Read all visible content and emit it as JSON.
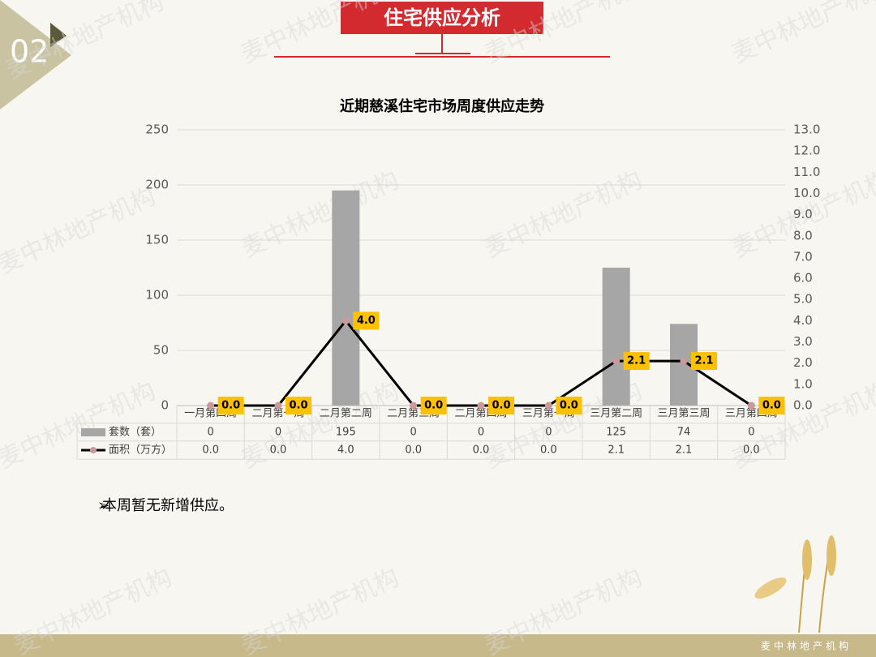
{
  "section_number": "02",
  "header_title": "住宅供应分析",
  "watermark": "麦中林地产机构",
  "footer": "麦中林地产机构",
  "bullet": "本周暂无新增供应。",
  "chart_data": {
    "type": "bar_line",
    "title": "近期慈溪住宅市场周度供应走势",
    "categories": [
      "一月第四周",
      "二月第一周",
      "二月第二周",
      "二月第三周",
      "二月第四周",
      "三月第一周",
      "三月第二周",
      "三月第三周",
      "三月第四周"
    ],
    "series": [
      {
        "name": "套数（套）",
        "type": "bar",
        "color": "#a6a6a6",
        "values": [
          0,
          0,
          195,
          0,
          0,
          0,
          125,
          74,
          0
        ]
      },
      {
        "name": "面积（万方）",
        "type": "line",
        "axis": "y2",
        "color": "#000000",
        "marker_color": "#c99a9a",
        "label_color": "#ffc000",
        "values": [
          0,
          0,
          4.0,
          0,
          0,
          0,
          2.1,
          2.1,
          0
        ],
        "value_labels": [
          "0.0",
          "0.0",
          "4.0",
          "0.0",
          "0.0",
          "0.0",
          "2.1",
          "2.1",
          "0.0"
        ]
      }
    ],
    "ylim": [
      0,
      250
    ],
    "yticks": [
      0,
      50,
      100,
      150,
      200,
      250
    ],
    "y2lim": [
      0,
      13
    ],
    "y2ticks": [
      {
        "value": 0,
        "label": "0.0"
      },
      {
        "value": 1,
        "label": "1.0"
      },
      {
        "value": 2,
        "label": "2.0"
      },
      {
        "value": 3,
        "label": "3.0"
      },
      {
        "value": 4,
        "label": "4.0"
      },
      {
        "value": 5,
        "label": "5.0"
      },
      {
        "value": 6,
        "label": "6.0"
      },
      {
        "value": 7,
        "label": "7.0"
      },
      {
        "value": 8,
        "label": "8.0"
      },
      {
        "value": 9,
        "label": "9.0"
      },
      {
        "value": 10,
        "label": "10.0"
      },
      {
        "value": 11,
        "label": "11.0"
      },
      {
        "value": 12,
        "label": "12.0"
      },
      {
        "value": 13,
        "label": "13.0"
      }
    ],
    "grid": true,
    "data_table": true
  }
}
